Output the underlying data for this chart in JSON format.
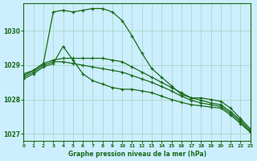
{
  "title": "Graphe pression niveau de la mer (hPa)",
  "background_color": "#cceeff",
  "grid_color": "#aaddcc",
  "line_color": "#1a6b1a",
  "xlim": [
    0,
    23
  ],
  "ylim": [
    1026.8,
    1030.8
  ],
  "yticks": [
    1027,
    1028,
    1029,
    1030
  ],
  "xticks": [
    0,
    1,
    2,
    3,
    4,
    5,
    6,
    7,
    8,
    9,
    10,
    11,
    12,
    13,
    14,
    15,
    16,
    17,
    18,
    19,
    20,
    21,
    22,
    23
  ],
  "series": [
    {
      "x": [
        0,
        1,
        2,
        3,
        4,
        5,
        6,
        7,
        8,
        9,
        10,
        11,
        12,
        13,
        14,
        15,
        16,
        17,
        18,
        19,
        20,
        21,
        22,
        23
      ],
      "y": [
        1028.75,
        1028.85,
        1029.05,
        1030.55,
        1030.6,
        1030.55,
        1030.6,
        1030.65,
        1030.65,
        1030.55,
        1030.3,
        1029.85,
        1029.35,
        1028.9,
        1028.65,
        1028.4,
        1028.15,
        1028.05,
        1028.05,
        1028.0,
        1027.95,
        1027.75,
        1027.45,
        1027.15
      ]
    },
    {
      "x": [
        0,
        1,
        2,
        3,
        4,
        5,
        6,
        7,
        8,
        9,
        10,
        11,
        12,
        13,
        14,
        15,
        16,
        17,
        18,
        19,
        20,
        21,
        22,
        23
      ],
      "y": [
        1028.7,
        1028.85,
        1029.05,
        1029.15,
        1029.2,
        1029.2,
        1029.2,
        1029.2,
        1029.2,
        1029.15,
        1029.1,
        1028.95,
        1028.8,
        1028.65,
        1028.5,
        1028.35,
        1028.2,
        1028.05,
        1027.98,
        1027.9,
        1027.85,
        1027.65,
        1027.4,
        1027.1
      ]
    },
    {
      "x": [
        0,
        1,
        2,
        3,
        4,
        5,
        6,
        7,
        8,
        9,
        10,
        11,
        12,
        13,
        14,
        15,
        16,
        17,
        18,
        19,
        20,
        21,
        22,
        23
      ],
      "y": [
        1028.65,
        1028.8,
        1029.0,
        1029.1,
        1029.1,
        1029.05,
        1029.0,
        1028.95,
        1028.9,
        1028.85,
        1028.8,
        1028.7,
        1028.6,
        1028.5,
        1028.38,
        1028.25,
        1028.1,
        1027.98,
        1027.9,
        1027.85,
        1027.8,
        1027.6,
        1027.35,
        1027.05
      ]
    },
    {
      "x": [
        0,
        1,
        2,
        3,
        4,
        5,
        6,
        7,
        8,
        9,
        10,
        11,
        12,
        13,
        14,
        15,
        16,
        17,
        18,
        19,
        20,
        21,
        22,
        23
      ],
      "y": [
        1028.6,
        1028.75,
        1028.95,
        1029.05,
        1029.55,
        1029.15,
        1028.75,
        1028.55,
        1028.45,
        1028.35,
        1028.3,
        1028.3,
        1028.25,
        1028.2,
        1028.1,
        1028.0,
        1027.92,
        1027.85,
        1027.82,
        1027.78,
        1027.75,
        1027.55,
        1027.3,
        1027.05
      ]
    }
  ]
}
